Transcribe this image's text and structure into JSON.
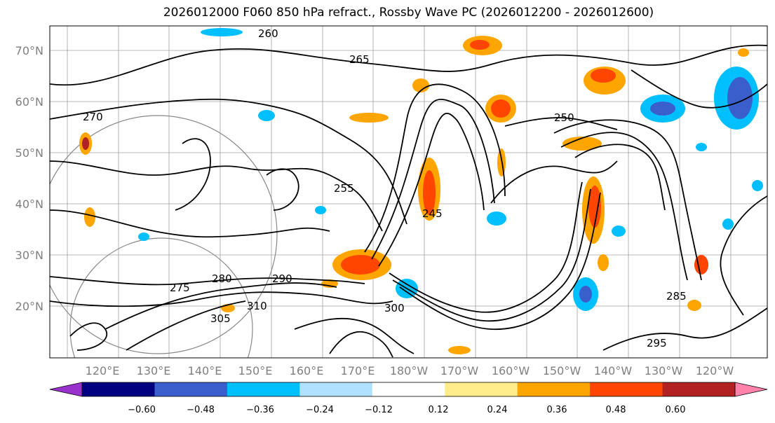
{
  "title": "2026012000 F060 850 hPa refract., Rossby Wave PC (2026012200 - 2026012600)",
  "lat_labels": [
    "70°N",
    "60°N",
    "50°N",
    "40°N",
    "30°N",
    "20°N"
  ],
  "lon_labels": [
    "120°E",
    "130°E",
    "140°E",
    "150°E",
    "160°E",
    "170°E",
    "180°W",
    "170°W",
    "160°W",
    "150°W",
    "140°W",
    "130°W",
    "120°W"
  ],
  "contour_labels": [
    "260",
    "265",
    "270",
    "255",
    "245",
    "250",
    "280",
    "290",
    "300",
    "310",
    "285",
    "295",
    "275",
    "305"
  ],
  "colorbar": {
    "colors": [
      "#9932cc",
      "#000080",
      "#3a5fcd",
      "#00bfff",
      "#b0e2ff",
      "#ffffff",
      "#ffec8b",
      "#ffa500",
      "#ff4500",
      "#b22222",
      "#ff82ab"
    ],
    "ticks": [
      "−0.60",
      "−0.48",
      "−0.36",
      "−0.24",
      "−0.12",
      "0.12",
      "0.24",
      "0.36",
      "0.48",
      "0.60"
    ]
  }
}
